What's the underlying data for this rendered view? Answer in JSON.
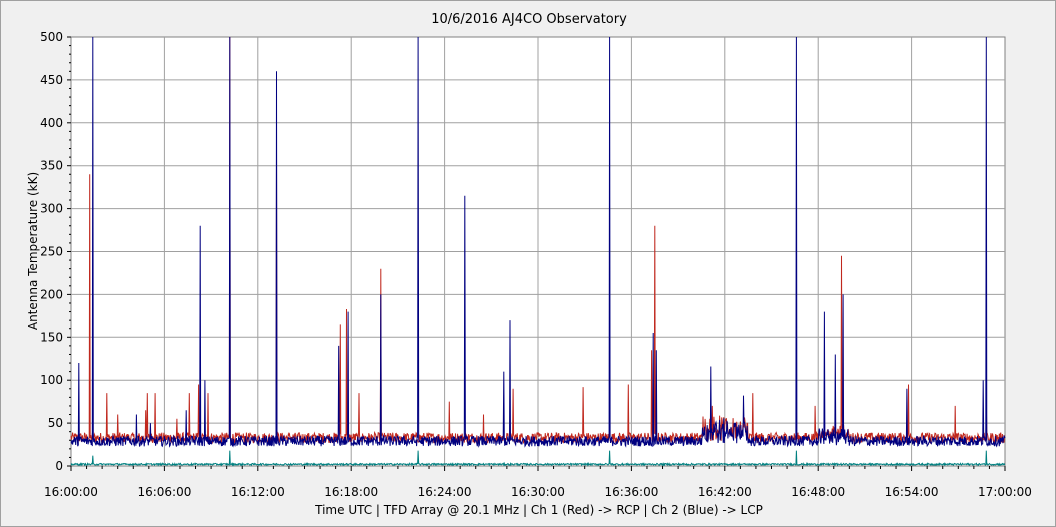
{
  "chart_data": {
    "type": "line",
    "title": "10/6/2016    AJ4CO Observatory",
    "ylabel": "Antenna Temperature (kK)",
    "footer": "Time UTC   |   TFD Array @ 20.1 MHz   |   Ch 1 (Red) -> RCP   |   Ch 2 (Blue)  -> LCP",
    "ylim": [
      0,
      500
    ],
    "yticks": [
      0,
      50,
      100,
      150,
      200,
      250,
      300,
      350,
      400,
      450,
      500
    ],
    "xlim_minutes": [
      0,
      60
    ],
    "xticks": [
      {
        "m": 0,
        "label": "16:00:00"
      },
      {
        "m": 6,
        "label": "16:06:00"
      },
      {
        "m": 12,
        "label": "16:12:00"
      },
      {
        "m": 18,
        "label": "16:18:00"
      },
      {
        "m": 24,
        "label": "16:24:00"
      },
      {
        "m": 30,
        "label": "16:30:00"
      },
      {
        "m": 36,
        "label": "16:36:00"
      },
      {
        "m": 42,
        "label": "16:42:00"
      },
      {
        "m": 48,
        "label": "16:48:00"
      },
      {
        "m": 54,
        "label": "16:54:00"
      },
      {
        "m": 60,
        "label": "17:00:00"
      }
    ],
    "grid": true,
    "background": "#ffffff",
    "series": [
      {
        "color": "#c0281e",
        "baseline": 33,
        "spikes": [
          [
            1.2,
            340
          ],
          [
            2.3,
            85
          ],
          [
            3.0,
            60
          ],
          [
            4.8,
            65
          ],
          [
            4.9,
            85
          ],
          [
            5.4,
            85
          ],
          [
            6.8,
            55
          ],
          [
            7.6,
            85
          ],
          [
            8.2,
            95
          ],
          [
            8.8,
            85
          ],
          [
            10.2,
            500
          ],
          [
            13.2,
            360
          ],
          [
            17.3,
            165
          ],
          [
            17.7,
            183
          ],
          [
            18.5,
            85
          ],
          [
            19.9,
            230
          ],
          [
            24.3,
            75
          ],
          [
            26.5,
            60
          ],
          [
            28.4,
            90
          ],
          [
            32.9,
            92
          ],
          [
            35.8,
            95
          ],
          [
            37.5,
            280
          ],
          [
            37.3,
            135
          ],
          [
            41.2,
            70
          ],
          [
            43.8,
            85
          ],
          [
            47.8,
            70
          ],
          [
            49.5,
            245
          ],
          [
            53.8,
            95
          ],
          [
            56.8,
            70
          ],
          [
            58.8,
            75
          ]
        ]
      },
      {
        "color": "#000080",
        "baseline": 29,
        "spikes": [
          [
            0.5,
            120
          ],
          [
            1.4,
            500
          ],
          [
            4.2,
            60
          ],
          [
            5.1,
            50
          ],
          [
            7.4,
            65
          ],
          [
            8.3,
            280
          ],
          [
            8.6,
            100
          ],
          [
            10.2,
            500
          ],
          [
            13.2,
            460
          ],
          [
            17.2,
            140
          ],
          [
            17.8,
            180
          ],
          [
            19.9,
            200
          ],
          [
            22.3,
            500
          ],
          [
            25.3,
            315
          ],
          [
            27.8,
            110
          ],
          [
            28.2,
            170
          ],
          [
            34.6,
            500
          ],
          [
            37.4,
            155
          ],
          [
            37.6,
            135
          ],
          [
            41.1,
            116
          ],
          [
            43.2,
            82
          ],
          [
            46.6,
            500
          ],
          [
            48.4,
            180
          ],
          [
            49.1,
            130
          ],
          [
            49.6,
            200
          ],
          [
            53.7,
            90
          ],
          [
            58.6,
            100
          ],
          [
            58.8,
            500
          ]
        ]
      },
      {
        "color": "#008080",
        "baseline": 2,
        "spikes": [
          [
            1.4,
            12
          ],
          [
            10.2,
            18
          ],
          [
            22.3,
            18
          ],
          [
            34.6,
            18
          ],
          [
            46.6,
            18
          ],
          [
            58.8,
            18
          ]
        ]
      }
    ]
  }
}
